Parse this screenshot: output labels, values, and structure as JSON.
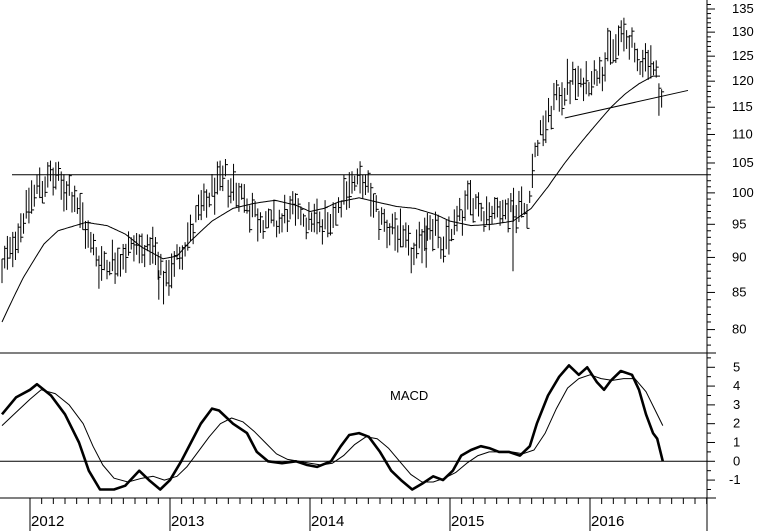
{
  "chart_data": [
    {
      "type": "ohlc",
      "title": "",
      "ylim": [
        77,
        137
      ],
      "y_ticks": [
        80,
        85,
        90,
        95,
        100,
        105,
        110,
        115,
        120,
        125,
        130,
        135
      ],
      "log_scale": true,
      "grid": false,
      "horizontal_lines": [
        {
          "value": 103
        }
      ],
      "trendline": {
        "start": {
          "x": 2015.82,
          "y": 113
        },
        "end": {
          "x": 2016.7,
          "y": 118.2
        }
      },
      "price_anchors": [
        [
          2011.8,
          88
        ],
        [
          2011.95,
          96
        ],
        [
          2012.05,
          101
        ],
        [
          2012.15,
          102.5
        ],
        [
          2012.3,
          100
        ],
        [
          2012.4,
          94
        ],
        [
          2012.5,
          89
        ],
        [
          2012.65,
          90
        ],
        [
          2012.75,
          92
        ],
        [
          2012.88,
          91
        ],
        [
          2012.95,
          86
        ],
        [
          2013.05,
          90
        ],
        [
          2013.2,
          96
        ],
        [
          2013.3,
          100
        ],
        [
          2013.4,
          102.5
        ],
        [
          2013.5,
          100
        ],
        [
          2013.62,
          96
        ],
        [
          2013.75,
          95
        ],
        [
          2013.88,
          97
        ],
        [
          2014.0,
          96
        ],
        [
          2014.1,
          95
        ],
        [
          2014.2,
          98
        ],
        [
          2014.3,
          102
        ],
        [
          2014.4,
          101
        ],
        [
          2014.5,
          96
        ],
        [
          2014.65,
          93
        ],
        [
          2014.75,
          90
        ],
        [
          2014.85,
          96
        ],
        [
          2014.95,
          91
        ],
        [
          2015.05,
          96
        ],
        [
          2015.15,
          99
        ],
        [
          2015.25,
          97
        ],
        [
          2015.35,
          97
        ],
        [
          2015.45,
          98
        ],
        [
          2015.55,
          97
        ],
        [
          2015.58,
          103
        ],
        [
          2015.62,
          108
        ],
        [
          2015.75,
          116
        ],
        [
          2015.85,
          120
        ],
        [
          2015.95,
          119
        ],
        [
          2016.05,
          122
        ],
        [
          2016.15,
          126
        ],
        [
          2016.25,
          130
        ],
        [
          2016.33,
          124
        ],
        [
          2016.42,
          125
        ],
        [
          2016.48,
          120
        ],
        [
          2016.52,
          116
        ]
      ],
      "moving_average_anchors": [
        [
          2011.8,
          81
        ],
        [
          2011.95,
          87
        ],
        [
          2012.1,
          92
        ],
        [
          2012.2,
          94
        ],
        [
          2012.4,
          95.3
        ],
        [
          2012.55,
          94.8
        ],
        [
          2012.68,
          93.5
        ],
        [
          2012.8,
          91.5
        ],
        [
          2012.95,
          89.8
        ],
        [
          2013.05,
          90.2
        ],
        [
          2013.15,
          92.5
        ],
        [
          2013.3,
          95.5
        ],
        [
          2013.45,
          97.5
        ],
        [
          2013.6,
          98.3
        ],
        [
          2013.75,
          98.8
        ],
        [
          2013.9,
          98
        ],
        [
          2014.0,
          97
        ],
        [
          2014.1,
          97.5
        ],
        [
          2014.2,
          98.5
        ],
        [
          2014.35,
          99.2
        ],
        [
          2014.5,
          98.4
        ],
        [
          2014.62,
          97.8
        ],
        [
          2014.75,
          97.5
        ],
        [
          2014.9,
          96.5
        ],
        [
          2015.0,
          95.5
        ],
        [
          2015.15,
          94.8
        ],
        [
          2015.3,
          95
        ],
        [
          2015.45,
          95.5
        ],
        [
          2015.58,
          97.5
        ],
        [
          2015.7,
          101
        ],
        [
          2015.82,
          105
        ],
        [
          2015.95,
          109
        ],
        [
          2016.05,
          112
        ],
        [
          2016.15,
          115
        ],
        [
          2016.25,
          117.5
        ],
        [
          2016.35,
          119.5
        ],
        [
          2016.45,
          121
        ],
        [
          2016.5,
          121
        ]
      ],
      "spike_lows": [
        {
          "x": 2015.45,
          "value": 88
        },
        {
          "x": 2014.83,
          "value": 88.5
        },
        {
          "x": 2012.92,
          "value": 84
        }
      ]
    },
    {
      "type": "line",
      "title": "MACD",
      "ylim": [
        -1.9,
        5.6
      ],
      "y_ticks": [
        -1,
        0,
        1,
        2,
        3,
        4,
        5
      ],
      "horizontal_lines": [
        {
          "value": 0
        }
      ],
      "series": [
        {
          "style": "thick",
          "points": [
            [
              2011.8,
              2.5
            ],
            [
              2011.9,
              3.4
            ],
            [
              2012.0,
              3.8
            ],
            [
              2012.05,
              4.1
            ],
            [
              2012.15,
              3.5
            ],
            [
              2012.25,
              2.5
            ],
            [
              2012.35,
              1.0
            ],
            [
              2012.42,
              -0.5
            ],
            [
              2012.5,
              -1.5
            ],
            [
              2012.6,
              -1.5
            ],
            [
              2012.68,
              -1.3
            ],
            [
              2012.78,
              -0.5
            ],
            [
              2012.85,
              -1.0
            ],
            [
              2012.93,
              -1.5
            ],
            [
              2013.0,
              -1.0
            ],
            [
              2013.08,
              0.0
            ],
            [
              2013.15,
              1.0
            ],
            [
              2013.22,
              2.0
            ],
            [
              2013.3,
              2.8
            ],
            [
              2013.35,
              2.7
            ],
            [
              2013.45,
              2.0
            ],
            [
              2013.55,
              1.5
            ],
            [
              2013.62,
              0.5
            ],
            [
              2013.7,
              0.0
            ],
            [
              2013.8,
              -0.1
            ],
            [
              2013.9,
              0.0
            ],
            [
              2013.98,
              -0.2
            ],
            [
              2014.05,
              -0.3
            ],
            [
              2014.15,
              0.0
            ],
            [
              2014.22,
              0.8
            ],
            [
              2014.28,
              1.4
            ],
            [
              2014.35,
              1.5
            ],
            [
              2014.42,
              1.3
            ],
            [
              2014.5,
              0.5
            ],
            [
              2014.58,
              -0.5
            ],
            [
              2014.65,
              -1.0
            ],
            [
              2014.73,
              -1.5
            ],
            [
              2014.8,
              -1.2
            ],
            [
              2014.88,
              -0.8
            ],
            [
              2014.95,
              -1.0
            ],
            [
              2015.02,
              -0.5
            ],
            [
              2015.08,
              0.3
            ],
            [
              2015.15,
              0.6
            ],
            [
              2015.22,
              0.8
            ],
            [
              2015.28,
              0.7
            ],
            [
              2015.35,
              0.5
            ],
            [
              2015.42,
              0.5
            ],
            [
              2015.5,
              0.3
            ],
            [
              2015.57,
              0.8
            ],
            [
              2015.62,
              2.0
            ],
            [
              2015.7,
              3.5
            ],
            [
              2015.78,
              4.5
            ],
            [
              2015.85,
              5.1
            ],
            [
              2015.92,
              4.6
            ],
            [
              2015.98,
              5.0
            ],
            [
              2016.05,
              4.2
            ],
            [
              2016.1,
              3.8
            ],
            [
              2016.15,
              4.3
            ],
            [
              2016.22,
              4.8
            ],
            [
              2016.3,
              4.6
            ],
            [
              2016.35,
              3.8
            ],
            [
              2016.4,
              2.5
            ],
            [
              2016.45,
              1.5
            ],
            [
              2016.48,
              1.2
            ],
            [
              2016.52,
              0.0
            ]
          ]
        },
        {
          "style": "thin",
          "points": [
            [
              2011.8,
              1.9
            ],
            [
              2011.9,
              2.6
            ],
            [
              2012.0,
              3.3
            ],
            [
              2012.08,
              3.8
            ],
            [
              2012.18,
              3.6
            ],
            [
              2012.28,
              3.0
            ],
            [
              2012.38,
              2.0
            ],
            [
              2012.45,
              0.8
            ],
            [
              2012.52,
              -0.2
            ],
            [
              2012.6,
              -0.9
            ],
            [
              2012.7,
              -1.1
            ],
            [
              2012.8,
              -0.9
            ],
            [
              2012.88,
              -0.8
            ],
            [
              2012.96,
              -1.0
            ],
            [
              2013.05,
              -0.8
            ],
            [
              2013.12,
              -0.3
            ],
            [
              2013.2,
              0.5
            ],
            [
              2013.28,
              1.3
            ],
            [
              2013.36,
              2.0
            ],
            [
              2013.44,
              2.3
            ],
            [
              2013.52,
              2.1
            ],
            [
              2013.6,
              1.6
            ],
            [
              2013.68,
              1.0
            ],
            [
              2013.76,
              0.4
            ],
            [
              2013.84,
              0.1
            ],
            [
              2013.92,
              0.0
            ],
            [
              2014.0,
              -0.1
            ],
            [
              2014.08,
              -0.2
            ],
            [
              2014.16,
              -0.1
            ],
            [
              2014.24,
              0.3
            ],
            [
              2014.32,
              0.9
            ],
            [
              2014.4,
              1.3
            ],
            [
              2014.48,
              1.2
            ],
            [
              2014.56,
              0.7
            ],
            [
              2014.64,
              0.0
            ],
            [
              2014.72,
              -0.7
            ],
            [
              2014.8,
              -1.1
            ],
            [
              2014.88,
              -1.1
            ],
            [
              2014.96,
              -0.9
            ],
            [
              2015.04,
              -0.6
            ],
            [
              2015.12,
              -0.1
            ],
            [
              2015.2,
              0.3
            ],
            [
              2015.28,
              0.5
            ],
            [
              2015.36,
              0.5
            ],
            [
              2015.44,
              0.5
            ],
            [
              2015.52,
              0.4
            ],
            [
              2015.6,
              0.6
            ],
            [
              2015.68,
              1.5
            ],
            [
              2015.76,
              2.8
            ],
            [
              2015.84,
              3.9
            ],
            [
              2015.92,
              4.4
            ],
            [
              2016.0,
              4.6
            ],
            [
              2016.08,
              4.4
            ],
            [
              2016.16,
              4.3
            ],
            [
              2016.24,
              4.4
            ],
            [
              2016.32,
              4.4
            ],
            [
              2016.4,
              3.7
            ],
            [
              2016.46,
              2.8
            ],
            [
              2016.52,
              1.9
            ]
          ]
        }
      ]
    }
  ],
  "x_axis": {
    "labels": [
      "2012",
      "2013",
      "2014",
      "2015",
      "2016"
    ]
  }
}
